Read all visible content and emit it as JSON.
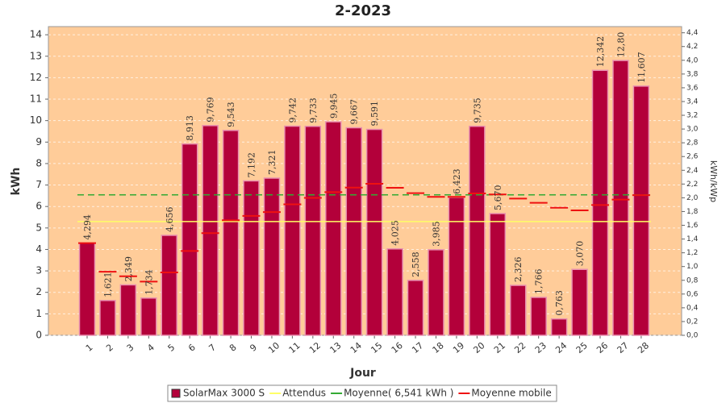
{
  "chart_data": {
    "type": "bar",
    "title": "2-2023",
    "xlabel": "Jour",
    "ylabel": "kWh",
    "y2label": "kWh/kWp",
    "categories": [
      "1",
      "2",
      "3",
      "4",
      "5",
      "6",
      "7",
      "8",
      "9",
      "10",
      "11",
      "12",
      "13",
      "14",
      "15",
      "16",
      "17",
      "18",
      "19",
      "20",
      "21",
      "22",
      "23",
      "24",
      "25",
      "26",
      "27",
      "28"
    ],
    "series": [
      {
        "name": "SolarMax 3000 S",
        "color": "#b3003a",
        "values": [
          4.294,
          1.621,
          2.349,
          1.734,
          4.656,
          8.913,
          9.769,
          9.543,
          7.192,
          7.321,
          9.742,
          9.733,
          9.945,
          9.667,
          9.591,
          4.025,
          2.558,
          3.985,
          6.423,
          9.735,
          5.67,
          2.326,
          1.766,
          0.763,
          3.07,
          12.342,
          12.8,
          11.607
        ],
        "value_labels": [
          "4,294",
          "1,621",
          "2,349",
          "1,734",
          "4,656",
          "8,913",
          "9,769",
          "9,543",
          "7,192",
          "7,321",
          "9,742",
          "9,733",
          "9,945",
          "9,667",
          "9,591",
          "4,025",
          "2,558",
          "3,985",
          "6,423",
          "9,735",
          "5,670",
          "2,326",
          "1,766",
          "0,763",
          "3,070",
          "12,342",
          "12,80",
          "11,607"
        ]
      }
    ],
    "reference_lines": [
      {
        "name": "Attendus",
        "color": "#ffff66",
        "value": 5.3,
        "style": "solid"
      },
      {
        "name": "Moyenne( 6,541 kWh )",
        "color": "#33aa33",
        "value": 6.541,
        "style": "dashed"
      }
    ],
    "moving_average": {
      "name": "Moyenne mobile",
      "color": "#ee1111",
      "values": [
        4.294,
        2.96,
        2.75,
        2.5,
        2.93,
        3.93,
        4.76,
        5.36,
        5.56,
        5.74,
        6.1,
        6.4,
        6.67,
        6.88,
        7.06,
        6.87,
        6.62,
        6.45,
        6.45,
        6.61,
        6.56,
        6.37,
        6.17,
        5.94,
        5.82,
        6.07,
        6.32,
        6.53
      ]
    },
    "ylim": [
      0,
      14.38
    ],
    "yticks": [
      0,
      1,
      2,
      3,
      4,
      5,
      6,
      7,
      8,
      9,
      10,
      11,
      12,
      13,
      14
    ],
    "y2lim": [
      0,
      4.49
    ],
    "y2ticks": [
      {
        "value": 0,
        "label": "0,0"
      },
      {
        "value": 0.2,
        "label": "0,2"
      },
      {
        "value": 0.4,
        "label": "0,4"
      },
      {
        "value": 0.6,
        "label": "0,6"
      },
      {
        "value": 0.8,
        "label": "0,8"
      },
      {
        "value": 1,
        "label": "1,0"
      },
      {
        "value": 1.2,
        "label": "1,2"
      },
      {
        "value": 1.4,
        "label": "1,4"
      },
      {
        "value": 1.6,
        "label": "1,6"
      },
      {
        "value": 1.8,
        "label": "1,8"
      },
      {
        "value": 2,
        "label": "2,0"
      },
      {
        "value": 2.2,
        "label": "2,2"
      },
      {
        "value": 2.4,
        "label": "2,4"
      },
      {
        "value": 2.6,
        "label": "2,6"
      },
      {
        "value": 2.8,
        "label": "2,8"
      },
      {
        "value": 3,
        "label": "3,0"
      },
      {
        "value": 3.2,
        "label": "3,2"
      },
      {
        "value": 3.4,
        "label": "3,4"
      },
      {
        "value": 3.6,
        "label": "3,6"
      },
      {
        "value": 3.8,
        "label": "3,8"
      },
      {
        "value": 4,
        "label": "4,0"
      },
      {
        "value": 4.2,
        "label": "4,2"
      },
      {
        "value": 4.4,
        "label": "4,4"
      }
    ],
    "grid": true,
    "legend": "bottom"
  }
}
